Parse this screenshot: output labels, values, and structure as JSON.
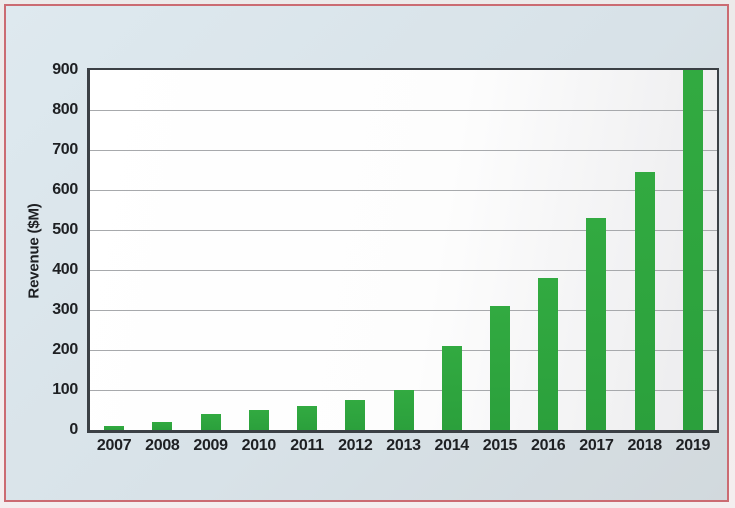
{
  "chart_data": {
    "type": "bar",
    "title": "",
    "xlabel": "",
    "ylabel": "Revenue ($M)",
    "categories": [
      "2007",
      "2008",
      "2009",
      "2010",
      "2011",
      "2012",
      "2013",
      "2014",
      "2015",
      "2016",
      "2017",
      "2018",
      "2019"
    ],
    "values": [
      10,
      20,
      40,
      50,
      60,
      75,
      100,
      210,
      310,
      380,
      530,
      645,
      900
    ],
    "ylim": [
      0,
      900
    ],
    "yticks": [
      0,
      100,
      200,
      300,
      400,
      500,
      600,
      700,
      800,
      900
    ],
    "grid": true,
    "legend": false,
    "colors": {
      "bar": "#2ea33e",
      "panel_background": "#d8e2e8",
      "panel_border": "#cb6b72",
      "plot_background": "#ffffff",
      "plot_frame": "#3b4045",
      "gridline": "#a7a9ac",
      "text": "#1e2023"
    }
  }
}
